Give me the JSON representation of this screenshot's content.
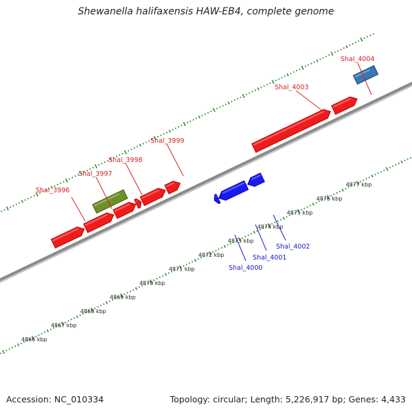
{
  "title": "Shewanella halifaxensis HAW-EB4, complete genome",
  "footer": {
    "accession": "Accession: NC_010334",
    "summary": "Topology: circular; Length: 5,226,917 bp; Genes: 4,433"
  },
  "colors": {
    "forward_gene": "#ee1c1c",
    "reverse_gene": "#1a1aee",
    "rna_gene": "#6f8f2a",
    "other_gene": "#3a78b4",
    "tick": "#2f8a2f",
    "backbone": "#8a8a8a",
    "label_forward": "#d42020",
    "label_reverse": "#1a1ac8"
  },
  "scale": {
    "unit": "kbp",
    "labels": [
      "4866 kbp",
      "4867 kbp",
      "4868 kbp",
      "4869 kbp",
      "4870 kbp",
      "4871 kbp",
      "4872 kbp",
      "4873 kbp",
      "4874 kbp",
      "4875 kbp",
      "4876 kbp",
      "4877 kbp"
    ]
  },
  "genes": {
    "forward": [
      {
        "label": "Shal_3996",
        "start_kbp": 4869.9,
        "end_kbp": 4870.6
      },
      {
        "label": "Shal_3997",
        "start_kbp": 4870.62,
        "end_kbp": 4870.78
      },
      {
        "label": "Shal_3998",
        "start_kbp": 4870.82,
        "end_kbp": 4871.6
      },
      {
        "label": "Shal_3999",
        "start_kbp": 4871.65,
        "end_kbp": 4872.1
      },
      {
        "label": "Shal_4003",
        "start_kbp": 4874.6,
        "end_kbp": 4877.2
      },
      {
        "label": "Shal_4004",
        "start_kbp": 4877.3,
        "end_kbp": 4878.1
      }
    ],
    "forward_unlabeled": [
      {
        "start_kbp": 4867.8,
        "end_kbp": 4868.85
      },
      {
        "start_kbp": 4868.9,
        "end_kbp": 4869.85
      }
    ],
    "rna": [
      {
        "start_kbp": 4869.4,
        "end_kbp": 4870.45
      }
    ],
    "other": [
      {
        "start_kbp": 4878.3,
        "end_kbp": 4879.0
      }
    ],
    "reverse": [
      {
        "label": "Shal_4000",
        "start_kbp": 4872.82,
        "end_kbp": 4872.95
      },
      {
        "label": "Shal_4001",
        "start_kbp": 4872.97,
        "end_kbp": 4873.9
      },
      {
        "label": "Shal_4002",
        "start_kbp": 4873.95,
        "end_kbp": 4874.45
      }
    ]
  }
}
